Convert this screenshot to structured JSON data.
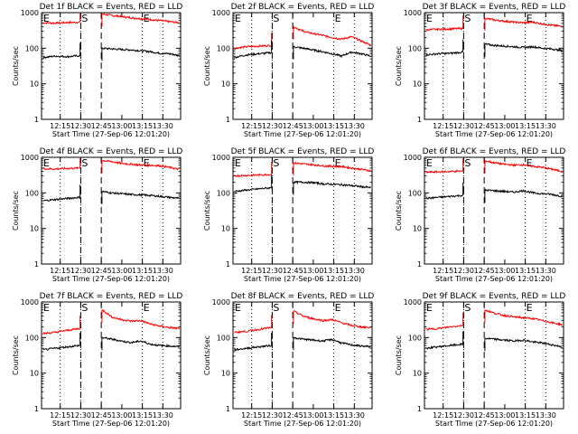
{
  "chart_data": {
    "type": "line",
    "yscale": "log",
    "ylim": [
      1,
      1000
    ],
    "yticks": [
      "1",
      "10",
      "100",
      "1000"
    ],
    "ylabel": "Counts/sec",
    "xlabel": "Start Time (27-Sep-06 12:01:20)",
    "xlim": [
      "12:01:20",
      "13:43:00"
    ],
    "xticks": [
      "12:15",
      "12:30",
      "12:45",
      "13:00",
      "13:15",
      "13:30"
    ],
    "markers": {
      "start_label": "S",
      "end_label": "E",
      "dotted_lines": [
        "12:15",
        "12:30",
        "13:15",
        "13:30"
      ],
      "dashed_lines": [
        "12:30",
        "12:45"
      ]
    },
    "series_colors": {
      "events": "#000000",
      "lld": "#ff0000"
    },
    "panels": [
      {
        "title": "Det 1f BLACK = Events, RED = LLD",
        "events": {
          "pre": [
            55,
            60,
            58,
            62
          ],
          "post": [
            100,
            96,
            92,
            90,
            85,
            80,
            72,
            70,
            62
          ]
        },
        "lld": {
          "pre": [
            520,
            510,
            530,
            540
          ],
          "post": [
            920,
            840,
            780,
            720,
            680,
            640,
            600,
            560,
            520
          ]
        }
      },
      {
        "title": "Det 2f BLACK = Events, RED = LLD",
        "events": {
          "pre": [
            55,
            65,
            70,
            75
          ],
          "post": [
            110,
            100,
            90,
            80,
            70,
            60,
            78,
            70,
            60
          ]
        },
        "lld": {
          "pre": [
            100,
            110,
            115,
            120
          ],
          "post": [
            400,
            300,
            260,
            230,
            200,
            180,
            210,
            160,
            120
          ]
        }
      },
      {
        "title": "Det 3f BLACK = Events, RED = LLD",
        "events": {
          "pre": [
            65,
            70,
            72,
            78
          ],
          "post": [
            130,
            120,
            115,
            110,
            105,
            110,
            100,
            95,
            85
          ]
        },
        "lld": {
          "pre": [
            330,
            340,
            350,
            360
          ],
          "post": [
            700,
            620,
            580,
            540,
            520,
            540,
            480,
            440,
            410
          ]
        }
      },
      {
        "title": "Det 4f BLACK = Events, RED = LLD",
        "events": {
          "pre": [
            60,
            65,
            70,
            75
          ],
          "post": [
            110,
            100,
            95,
            90,
            88,
            85,
            80,
            75,
            70
          ]
        },
        "lld": {
          "pre": [
            480,
            470,
            490,
            500
          ],
          "post": [
            820,
            760,
            680,
            640,
            610,
            600,
            580,
            520,
            460
          ]
        }
      },
      {
        "title": "Det 5f BLACK = Events, RED = LLD",
        "events": {
          "pre": [
            110,
            120,
            130,
            140
          ],
          "post": [
            200,
            200,
            195,
            180,
            175,
            170,
            160,
            150,
            140
          ]
        },
        "lld": {
          "pre": [
            300,
            310,
            320,
            330
          ],
          "post": [
            700,
            650,
            620,
            580,
            560,
            550,
            500,
            460,
            420
          ]
        }
      },
      {
        "title": "Det 6f BLACK = Events, RED = LLD",
        "events": {
          "pre": [
            70,
            75,
            80,
            85
          ],
          "post": [
            120,
            115,
            110,
            105,
            115,
            100,
            95,
            90,
            80
          ]
        },
        "lld": {
          "pre": [
            380,
            390,
            400,
            410
          ],
          "post": [
            800,
            700,
            640,
            600,
            620,
            560,
            520,
            460,
            400
          ]
        }
      },
      {
        "title": "Det 7f BLACK = Events, RED = LLD",
        "events": {
          "pre": [
            45,
            50,
            55,
            60
          ],
          "post": [
            100,
            90,
            80,
            72,
            80,
            65,
            60,
            58,
            55
          ]
        },
        "lld": {
          "pre": [
            130,
            140,
            160,
            180
          ],
          "post": [
            600,
            380,
            320,
            290,
            300,
            240,
            210,
            190,
            180
          ]
        }
      },
      {
        "title": "Det 8f BLACK = Events, RED = LLD",
        "events": {
          "pre": [
            45,
            50,
            55,
            60
          ],
          "post": [
            100,
            90,
            85,
            80,
            88,
            70,
            62,
            58,
            55
          ]
        },
        "lld": {
          "pre": [
            140,
            150,
            170,
            190
          ],
          "post": [
            550,
            400,
            340,
            300,
            320,
            260,
            220,
            200,
            190
          ]
        }
      },
      {
        "title": "Det 9f BLACK = Events, RED = LLD",
        "events": {
          "pre": [
            50,
            55,
            60,
            65
          ],
          "post": [
            95,
            90,
            85,
            80,
            85,
            75,
            70,
            62,
            55
          ]
        },
        "lld": {
          "pre": [
            170,
            180,
            200,
            220
          ],
          "post": [
            600,
            480,
            420,
            380,
            360,
            340,
            300,
            260,
            230
          ]
        }
      }
    ]
  }
}
